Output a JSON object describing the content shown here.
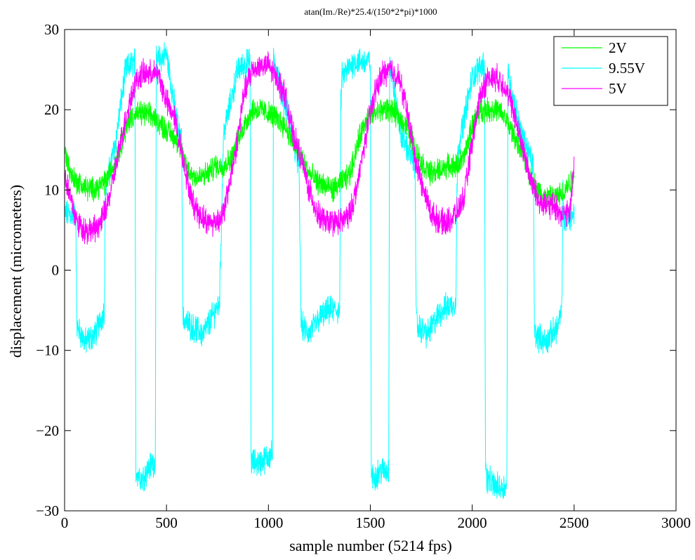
{
  "chart_data": {
    "type": "line",
    "title": "atan(Im./Re)*25.4/(150*2*pi)*1000",
    "xlabel": "sample number (5214 fps)",
    "ylabel": "displacement (micrometers)",
    "xlim": [
      0,
      3000
    ],
    "ylim": [
      -30,
      30
    ],
    "xticks": [
      0,
      500,
      1000,
      1500,
      2000,
      2500,
      3000
    ],
    "yticks": [
      -30,
      -20,
      -10,
      0,
      10,
      20,
      30
    ],
    "xtick_labels": [
      "0",
      "500",
      "1000",
      "1500",
      "2000",
      "2500",
      "3000"
    ],
    "ytick_labels": [
      "−30",
      "−20",
      "−10",
      "0",
      "10",
      "20",
      "30"
    ],
    "grid": false,
    "legend_position": "top-right",
    "noise_note_excluded": true,
    "series": [
      {
        "name": "2V",
        "color": "#00ff00",
        "noise": 1.2,
        "x": [
          0,
          30,
          60,
          120,
          170,
          200,
          240,
          280,
          320,
          360,
          400,
          440,
          480,
          520,
          560,
          580,
          620,
          660,
          700,
          740,
          780,
          820,
          880,
          920,
          960,
          1000,
          1040,
          1080,
          1120,
          1160,
          1200,
          1240,
          1280,
          1320,
          1360,
          1400,
          1440,
          1480,
          1520,
          1560,
          1600,
          1640,
          1680,
          1720,
          1760,
          1800,
          1840,
          1880,
          1920,
          1960,
          2000,
          2040,
          2080,
          2120,
          2160,
          2200,
          2240,
          2280,
          2320,
          2360,
          2400,
          2440,
          2480,
          2500
        ],
        "y": [
          15,
          12,
          11,
          10,
          10.5,
          11,
          13,
          16,
          19,
          19.5,
          19.5,
          19,
          18,
          17,
          16,
          14,
          12,
          11.5,
          12,
          13,
          13,
          14,
          18,
          20,
          20,
          19.5,
          19,
          18,
          16,
          14,
          12,
          11,
          10.5,
          10,
          11,
          12,
          16,
          19,
          19.5,
          20,
          20,
          19,
          18,
          15,
          13,
          12,
          12.5,
          13,
          13,
          14,
          18,
          20,
          20,
          20,
          19,
          17,
          15,
          12,
          10,
          9,
          9,
          9.5,
          11,
          12
        ]
      },
      {
        "name": "9.55V",
        "color": "#00ffff",
        "noise": 1.4,
        "x": [
          0,
          40,
          55,
          60,
          100,
          150,
          195,
          200,
          250,
          300,
          345,
          350,
          380,
          430,
          445,
          450,
          500,
          560,
          575,
          580,
          620,
          680,
          760,
          775,
          780,
          850,
          910,
          915,
          920,
          960,
          1010,
          1020,
          1025,
          1100,
          1150,
          1160,
          1165,
          1200,
          1250,
          1300,
          1350,
          1355,
          1360,
          1420,
          1500,
          1505,
          1510,
          1550,
          1590,
          1595,
          1600,
          1650,
          1720,
          1725,
          1730,
          1780,
          1850,
          1920,
          1925,
          1930,
          2000,
          2060,
          2065,
          2070,
          2120,
          2170,
          2175,
          2180,
          2240,
          2300,
          2305,
          2310,
          2360,
          2420,
          2440,
          2445,
          2450,
          2500
        ],
        "y": [
          7,
          7,
          7,
          -7,
          -9,
          -8,
          -5,
          10,
          16,
          25,
          26,
          -25,
          -26,
          -24,
          -24,
          26,
          27,
          17,
          16,
          -6,
          -7,
          -8,
          -4,
          12,
          17,
          25,
          26,
          -24,
          -24,
          -24,
          -23,
          -23,
          26,
          19,
          13,
          -6,
          -7,
          -8,
          -6,
          -5,
          -5,
          20,
          24,
          26,
          26,
          -25,
          -26,
          -25,
          -25,
          26,
          25,
          17,
          13,
          -6,
          -7,
          -8,
          -5,
          -4,
          10,
          15,
          24,
          26,
          -24,
          -26,
          -27,
          -27,
          25,
          24,
          17,
          13,
          -7,
          -8,
          -9,
          -7,
          -5,
          10,
          6,
          7
        ]
      },
      {
        "name": "5V",
        "color": "#ff00ff",
        "noise": 1.3,
        "x": [
          0,
          30,
          60,
          100,
          140,
          180,
          220,
          260,
          300,
          340,
          380,
          420,
          460,
          500,
          540,
          580,
          620,
          660,
          700,
          740,
          780,
          840,
          880,
          920,
          960,
          1000,
          1040,
          1080,
          1120,
          1160,
          1200,
          1240,
          1280,
          1320,
          1360,
          1400,
          1440,
          1480,
          1520,
          1560,
          1600,
          1640,
          1680,
          1720,
          1760,
          1800,
          1840,
          1880,
          1920,
          1960,
          2000,
          2040,
          2080,
          2120,
          2160,
          2200,
          2240,
          2280,
          2320,
          2360,
          2400,
          2440,
          2480,
          2500
        ],
        "y": [
          12,
          9,
          6,
          5,
          5,
          6,
          9,
          14,
          19,
          23,
          24.5,
          24.5,
          24.5,
          21,
          19,
          14,
          9,
          7,
          6,
          6,
          7,
          15,
          22,
          25,
          25.5,
          25.5,
          24,
          22,
          17,
          14,
          10,
          7,
          6,
          6,
          6,
          7,
          11,
          17,
          22,
          24.5,
          25,
          24,
          20,
          14,
          10,
          7,
          6,
          6,
          7,
          9,
          16,
          22,
          24,
          24,
          23,
          20,
          16,
          12,
          9,
          8,
          8,
          7,
          7,
          14
        ]
      }
    ]
  }
}
